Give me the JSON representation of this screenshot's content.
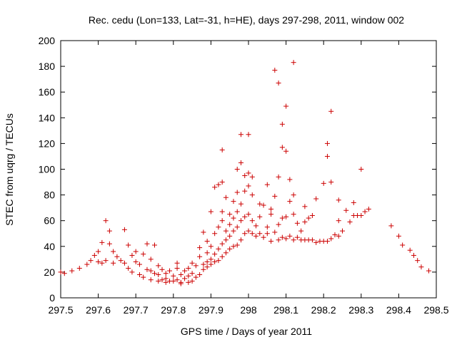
{
  "chart_data": {
    "type": "scatter",
    "title": "Rec. cedu (Lon=133, Lat=-31, h=HE), days 297-298, 2011, window 002",
    "xlabel": "GPS time / Days of year 2011",
    "ylabel": "STEC from uqrg / TECUs",
    "xlim": [
      297.5,
      298.5
    ],
    "ylim": [
      0,
      200
    ],
    "xticks": [
      "297.5",
      "297.6",
      "297.7",
      "297.8",
      "297.9",
      "298",
      "298.1",
      "298.2",
      "298.3",
      "298.4",
      "298.5"
    ],
    "yticks": [
      "0",
      "20",
      "40",
      "60",
      "80",
      "100",
      "120",
      "140",
      "160",
      "180",
      "200"
    ],
    "grid": false,
    "marker": "+",
    "color": "#cc0000",
    "points": [
      [
        297.5,
        20
      ],
      [
        297.51,
        19
      ],
      [
        297.53,
        21
      ],
      [
        297.55,
        23
      ],
      [
        297.57,
        26
      ],
      [
        297.58,
        29
      ],
      [
        297.59,
        33
      ],
      [
        297.6,
        36
      ],
      [
        297.6,
        28
      ],
      [
        297.61,
        27
      ],
      [
        297.62,
        29
      ],
      [
        297.62,
        60
      ],
      [
        297.61,
        43
      ],
      [
        297.63,
        42
      ],
      [
        297.63,
        52
      ],
      [
        297.64,
        36
      ],
      [
        297.64,
        27
      ],
      [
        297.65,
        32
      ],
      [
        297.66,
        29
      ],
      [
        297.67,
        27
      ],
      [
        297.67,
        53
      ],
      [
        297.68,
        23
      ],
      [
        297.68,
        41
      ],
      [
        297.69,
        33
      ],
      [
        297.69,
        20
      ],
      [
        297.7,
        28
      ],
      [
        297.7,
        36
      ],
      [
        297.71,
        18
      ],
      [
        297.71,
        26
      ],
      [
        297.72,
        34
      ],
      [
        297.72,
        16
      ],
      [
        297.73,
        22
      ],
      [
        297.73,
        42
      ],
      [
        297.74,
        14
      ],
      [
        297.74,
        21
      ],
      [
        297.74,
        30
      ],
      [
        297.75,
        19
      ],
      [
        297.75,
        41
      ],
      [
        297.76,
        13
      ],
      [
        297.76,
        25
      ],
      [
        297.76,
        18
      ],
      [
        297.77,
        14
      ],
      [
        297.77,
        22
      ],
      [
        297.78,
        12
      ],
      [
        297.78,
        19
      ],
      [
        297.78,
        15
      ],
      [
        297.79,
        13
      ],
      [
        297.79,
        21
      ],
      [
        297.8,
        17
      ],
      [
        297.8,
        13
      ],
      [
        297.81,
        14
      ],
      [
        297.81,
        27
      ],
      [
        297.81,
        23
      ],
      [
        297.82,
        12
      ],
      [
        297.82,
        18
      ],
      [
        297.82,
        11
      ],
      [
        297.83,
        15
      ],
      [
        297.83,
        21
      ],
      [
        297.84,
        12
      ],
      [
        297.84,
        17
      ],
      [
        297.84,
        23
      ],
      [
        297.85,
        13
      ],
      [
        297.85,
        19
      ],
      [
        297.85,
        27
      ],
      [
        297.86,
        16
      ],
      [
        297.86,
        25
      ],
      [
        297.87,
        18
      ],
      [
        297.87,
        32
      ],
      [
        297.87,
        39
      ],
      [
        297.88,
        22
      ],
      [
        297.88,
        26
      ],
      [
        297.88,
        51
      ],
      [
        297.89,
        24
      ],
      [
        297.89,
        28
      ],
      [
        297.89,
        35
      ],
      [
        297.89,
        44
      ],
      [
        297.9,
        26
      ],
      [
        297.9,
        30
      ],
      [
        297.9,
        40
      ],
      [
        297.9,
        67
      ],
      [
        297.91,
        28
      ],
      [
        297.91,
        34
      ],
      [
        297.91,
        50
      ],
      [
        297.91,
        86
      ],
      [
        297.92,
        29
      ],
      [
        297.92,
        38
      ],
      [
        297.92,
        55
      ],
      [
        297.92,
        88
      ],
      [
        297.93,
        32
      ],
      [
        297.93,
        42
      ],
      [
        297.93,
        60
      ],
      [
        297.93,
        67
      ],
      [
        297.93,
        90
      ],
      [
        297.93,
        115
      ],
      [
        297.94,
        35
      ],
      [
        297.94,
        45
      ],
      [
        297.94,
        52
      ],
      [
        297.94,
        78
      ],
      [
        297.95,
        38
      ],
      [
        297.95,
        48
      ],
      [
        297.95,
        57
      ],
      [
        297.95,
        65
      ],
      [
        297.96,
        40
      ],
      [
        297.96,
        52
      ],
      [
        297.96,
        62
      ],
      [
        297.96,
        75
      ],
      [
        297.97,
        41
      ],
      [
        297.97,
        55
      ],
      [
        297.97,
        67
      ],
      [
        297.97,
        82
      ],
      [
        297.97,
        100
      ],
      [
        297.98,
        45
      ],
      [
        297.98,
        60
      ],
      [
        297.98,
        73
      ],
      [
        297.98,
        105
      ],
      [
        297.98,
        127
      ],
      [
        297.99,
        50
      ],
      [
        297.99,
        63
      ],
      [
        297.99,
        83
      ],
      [
        297.99,
        95
      ],
      [
        298.0,
        52
      ],
      [
        298.0,
        65
      ],
      [
        298.0,
        87
      ],
      [
        298.0,
        97
      ],
      [
        298.0,
        127
      ],
      [
        298.01,
        50
      ],
      [
        298.01,
        60
      ],
      [
        298.01,
        80
      ],
      [
        298.01,
        94
      ],
      [
        298.02,
        48
      ],
      [
        298.02,
        56
      ],
      [
        298.03,
        50
      ],
      [
        298.03,
        63
      ],
      [
        298.03,
        73
      ],
      [
        298.04,
        47
      ],
      [
        298.04,
        72
      ],
      [
        298.05,
        50
      ],
      [
        298.05,
        55
      ],
      [
        298.05,
        88
      ],
      [
        298.06,
        44
      ],
      [
        298.06,
        65
      ],
      [
        298.06,
        69
      ],
      [
        298.07,
        51
      ],
      [
        298.07,
        79
      ],
      [
        298.07,
        177
      ],
      [
        298.08,
        45
      ],
      [
        298.08,
        57
      ],
      [
        298.08,
        94
      ],
      [
        298.08,
        167
      ],
      [
        298.09,
        47
      ],
      [
        298.09,
        62
      ],
      [
        298.09,
        135
      ],
      [
        298.09,
        117
      ],
      [
        298.1,
        46
      ],
      [
        298.1,
        63
      ],
      [
        298.1,
        114
      ],
      [
        298.1,
        149
      ],
      [
        298.11,
        48
      ],
      [
        298.11,
        75
      ],
      [
        298.11,
        92
      ],
      [
        298.12,
        45
      ],
      [
        298.12,
        65
      ],
      [
        298.12,
        80
      ],
      [
        298.12,
        183
      ],
      [
        298.13,
        47
      ],
      [
        298.13,
        58
      ],
      [
        298.14,
        45
      ],
      [
        298.14,
        52
      ],
      [
        298.15,
        45
      ],
      [
        298.15,
        59
      ],
      [
        298.15,
        71
      ],
      [
        298.16,
        45
      ],
      [
        298.16,
        62
      ],
      [
        298.17,
        45
      ],
      [
        298.17,
        64
      ],
      [
        298.18,
        43
      ],
      [
        298.18,
        77
      ],
      [
        298.19,
        44
      ],
      [
        298.2,
        44
      ],
      [
        298.2,
        89
      ],
      [
        298.21,
        44
      ],
      [
        298.21,
        110
      ],
      [
        298.21,
        120
      ],
      [
        298.22,
        46
      ],
      [
        298.22,
        90
      ],
      [
        298.22,
        145
      ],
      [
        298.23,
        49
      ],
      [
        298.24,
        48
      ],
      [
        298.24,
        60
      ],
      [
        298.24,
        76
      ],
      [
        298.25,
        52
      ],
      [
        298.26,
        68
      ],
      [
        298.27,
        59
      ],
      [
        298.28,
        64
      ],
      [
        298.28,
        74
      ],
      [
        298.29,
        64
      ],
      [
        298.3,
        64
      ],
      [
        298.3,
        100
      ],
      [
        298.31,
        67
      ],
      [
        298.32,
        69
      ],
      [
        298.38,
        56
      ],
      [
        298.4,
        48
      ],
      [
        298.41,
        41
      ],
      [
        298.43,
        37
      ],
      [
        298.44,
        33
      ],
      [
        298.45,
        29
      ],
      [
        298.46,
        24
      ],
      [
        298.48,
        21
      ]
    ]
  }
}
